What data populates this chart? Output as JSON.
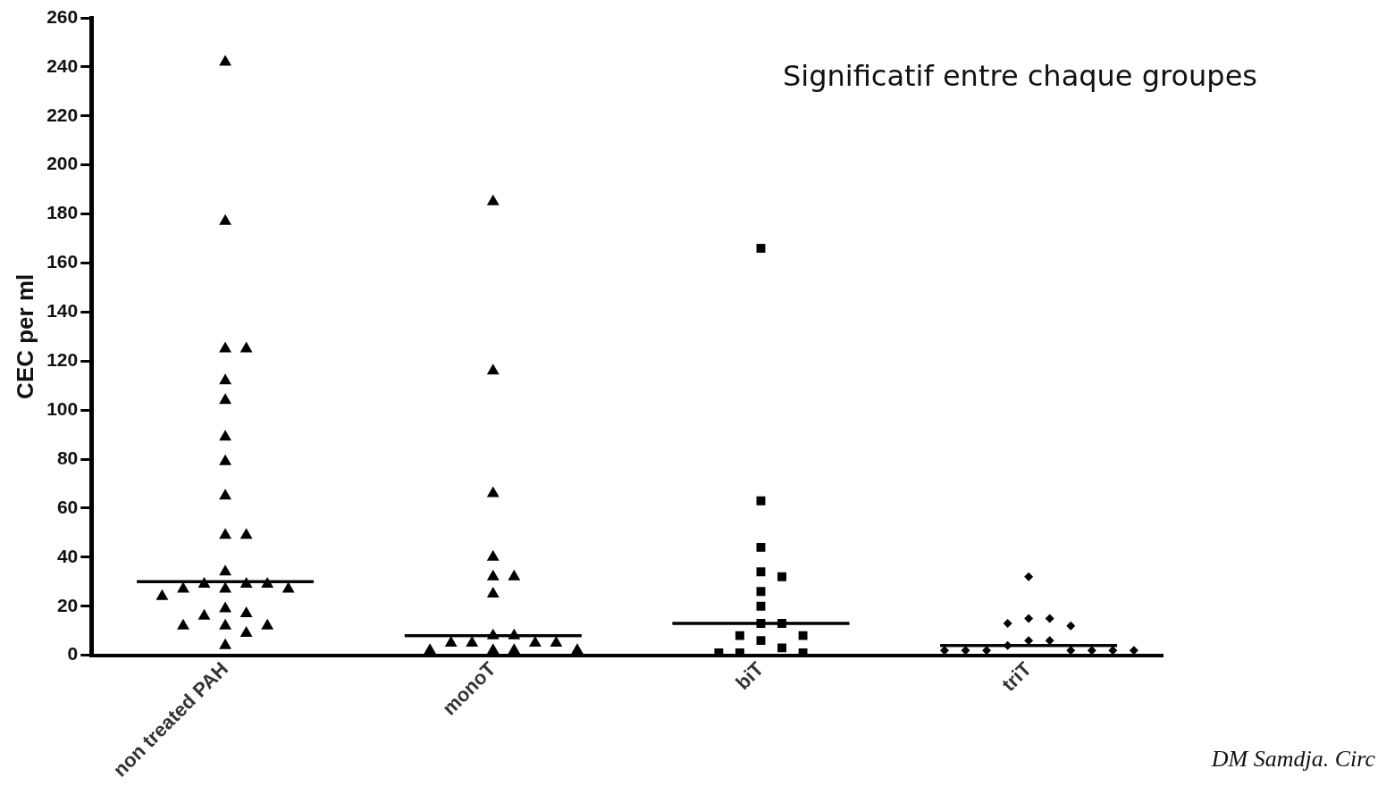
{
  "chart_data": {
    "type": "scatter",
    "ylabel": "CEC per ml",
    "categories": [
      "non treated PAH",
      "monoT",
      "biT",
      "triT"
    ],
    "ylim": [
      0,
      260
    ],
    "yticks": [
      0,
      20,
      40,
      60,
      80,
      100,
      120,
      140,
      160,
      180,
      200,
      220,
      240,
      260
    ],
    "grid": false,
    "legend": false,
    "series": [
      {
        "type": "scatter",
        "marker": "triangle",
        "color": "#000000",
        "x": [
          "non treated PAH",
          "non treated PAH",
          "non treated PAH",
          "non treated PAH",
          "non treated PAH",
          "non treated PAH",
          "non treated PAH",
          "non treated PAH",
          "non treated PAH",
          "non treated PAH",
          "non treated PAH",
          "non treated PAH",
          "non treated PAH",
          "non treated PAH",
          "non treated PAH",
          "non treated PAH",
          "non treated PAH",
          "non treated PAH",
          "non treated PAH",
          "non treated PAH",
          "non treated PAH",
          "non treated PAH",
          "non treated PAH",
          "non treated PAH",
          "non treated PAH",
          "non treated PAH",
          "non treated PAH"
        ],
        "values": [
          242,
          177,
          125,
          125,
          112,
          104,
          89,
          79,
          65,
          49,
          49,
          34,
          29,
          29,
          29,
          27,
          27,
          27,
          24,
          19,
          17,
          16,
          12,
          12,
          12,
          9,
          4
        ]
      },
      {
        "type": "scatter",
        "marker": "triangle",
        "color": "#000000",
        "x": [
          "monoT",
          "monoT",
          "monoT",
          "monoT",
          "monoT",
          "monoT",
          "monoT",
          "monoT",
          "monoT",
          "monoT",
          "monoT",
          "monoT",
          "monoT",
          "monoT",
          "monoT",
          "monoT",
          "monoT"
        ],
        "values": [
          185,
          116,
          66,
          40,
          32,
          32,
          25,
          8,
          8,
          5,
          5,
          5,
          5,
          2,
          2,
          2,
          2
        ]
      },
      {
        "type": "scatter",
        "marker": "square",
        "color": "#000000",
        "x": [
          "biT",
          "biT",
          "biT",
          "biT",
          "biT",
          "biT",
          "biT",
          "biT",
          "biT",
          "biT",
          "biT",
          "biT",
          "biT",
          "biT",
          "biT",
          "biT"
        ],
        "values": [
          166,
          63,
          44,
          34,
          32,
          26,
          20,
          13,
          13,
          8,
          8,
          6,
          3,
          1,
          1,
          1
        ]
      },
      {
        "type": "scatter",
        "marker": "diamond",
        "color": "#000000",
        "x": [
          "triT",
          "triT",
          "triT",
          "triT",
          "triT",
          "triT",
          "triT",
          "triT",
          "triT",
          "triT",
          "triT",
          "triT",
          "triT",
          "triT",
          "triT"
        ],
        "values": [
          32,
          15,
          15,
          13,
          12,
          6,
          6,
          4,
          2,
          2,
          2,
          2,
          2,
          2,
          2
        ]
      },
      {
        "type": "box",
        "color": "#000000",
        "boxes": [
          {
            "low": 30,
            "q1": 30,
            "median": 30,
            "q3": 30,
            "high": 30
          },
          {
            "low": 8,
            "q1": 8,
            "median": 8,
            "q3": 8,
            "high": 8
          },
          {
            "low": 13,
            "q1": 13,
            "median": 13,
            "q3": 13,
            "high": 13
          },
          {
            "low": 4,
            "q1": 4,
            "median": 4,
            "q3": 4,
            "high": 4
          }
        ]
      }
    ],
    "annotations": [
      "Significatif entre chaque groupes",
      "DM Samdja. Circ"
    ]
  }
}
